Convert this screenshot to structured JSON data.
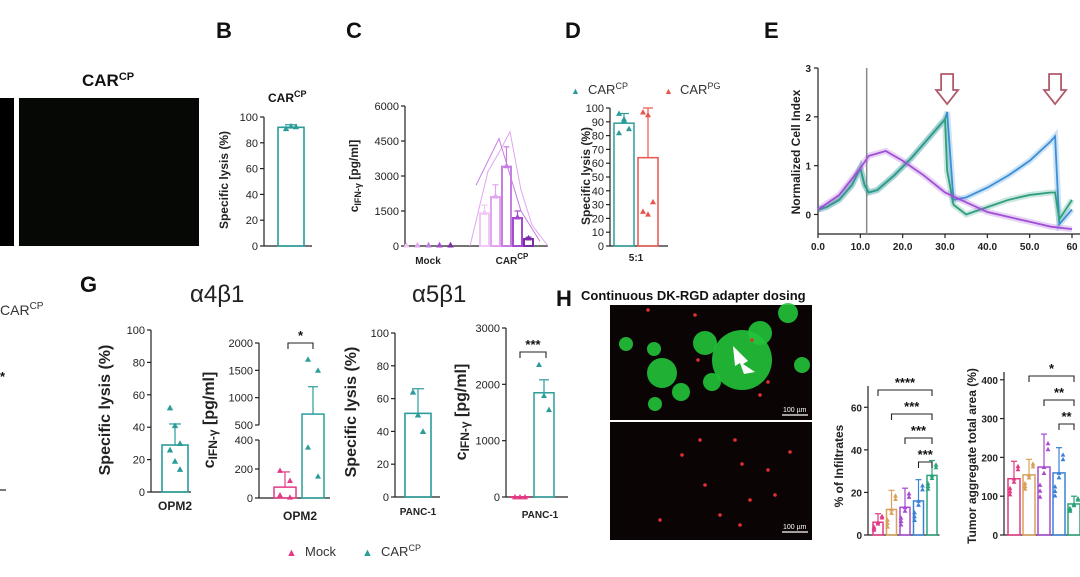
{
  "colors": {
    "teal": "#2a9d9a",
    "pink": "#e33a86",
    "purple": "#a64ad0",
    "lilac": "#e2a6ef",
    "blue": "#3b82d6",
    "orange": "#d9a15a",
    "green": "#2ba37a",
    "mauve": "#b05a6a"
  },
  "panels": {
    "F": {
      "title_main": "CAR",
      "title_sup": "CP"
    },
    "B": {
      "label": "B",
      "title_main": "CAR",
      "title_sup": "CP"
    },
    "C": {
      "label": "C"
    },
    "D": {
      "label": "D",
      "legend": [
        {
          "main": "CAR",
          "sup": "CP"
        },
        {
          "main": "CAR",
          "sup": "PG"
        }
      ]
    },
    "E": {
      "label": "E"
    },
    "G": {
      "label": "G",
      "title1": "α4β1",
      "title2": "α5β1",
      "legend": [
        "Mock",
        {
          "main": "CAR",
          "sup": "CP"
        }
      ],
      "left_frag": "CAR",
      "left_frag_sup": "CP",
      "left_star": "*"
    },
    "H": {
      "label": "H",
      "title": "Continuous DK-RGD adapter dosing",
      "scale1": "100 µm",
      "scale2": "100 µm"
    }
  },
  "chart_data": [
    {
      "id": "B",
      "type": "bar",
      "ylabel": "Specific lysis (%)",
      "ylim": [
        0,
        100
      ],
      "yticks": [
        0,
        20,
        40,
        60,
        80,
        100
      ],
      "categories": [
        ""
      ],
      "values": [
        92
      ],
      "error": [
        2
      ],
      "points": [
        91,
        93,
        92.5
      ]
    },
    {
      "id": "C",
      "type": "bar",
      "ylabel_main": "c",
      "ylabel_sub": "IFN-γ",
      "ylabel_rest": " [pg/ml]",
      "ylim": [
        0,
        6000
      ],
      "yticks": [
        0,
        1500,
        3000,
        4500,
        6000
      ],
      "categories": [
        "Mock",
        {
          "main": "CAR",
          "sup": "CP"
        }
      ],
      "series": [
        {
          "name": "1",
          "values": [
            0,
            1400
          ]
        },
        {
          "name": "2",
          "values": [
            0,
            2100
          ]
        },
        {
          "name": "3",
          "values": [
            0,
            3400
          ]
        },
        {
          "name": "4",
          "values": [
            0,
            1200
          ]
        },
        {
          "name": "5",
          "values": [
            0,
            300
          ]
        }
      ]
    },
    {
      "id": "D",
      "type": "bar",
      "ylabel": "Specific lysis (%)",
      "ylim": [
        0,
        100
      ],
      "yticks": [
        0,
        10,
        20,
        30,
        40,
        50,
        60,
        70,
        80,
        90,
        100
      ],
      "categories": [
        "5:1"
      ],
      "series": [
        {
          "name": "CAR^CP",
          "values": [
            89
          ],
          "error": [
            7
          ],
          "points": [
            96,
            92,
            85,
            82,
            91
          ]
        },
        {
          "name": "CAR^PG",
          "values": [
            64
          ],
          "error": [
            36
          ],
          "points": [
            97,
            95,
            32,
            25,
            23
          ]
        }
      ]
    },
    {
      "id": "E",
      "type": "line",
      "ylabel": "Normalized Cell Index",
      "xlim": [
        0,
        60
      ],
      "ylim": [
        -0.4,
        3
      ],
      "xticks": [
        "0.0",
        "10.0",
        "20.0",
        "30.0",
        "40.0",
        "50.0",
        "60"
      ],
      "yticks": [
        0,
        1,
        2,
        3
      ],
      "series": [
        {
          "name": "blue",
          "x": [
            0,
            2,
            5,
            8,
            10,
            11,
            12,
            14,
            18,
            22,
            26,
            30,
            30.5,
            32,
            35,
            40,
            45,
            50,
            55,
            56,
            57,
            60
          ],
          "y": [
            0.1,
            0.15,
            0.3,
            0.6,
            0.95,
            0.6,
            0.45,
            0.5,
            0.8,
            1.15,
            1.55,
            1.95,
            2.1,
            0.3,
            0.35,
            0.55,
            0.8,
            1.1,
            1.5,
            1.6,
            -0.2,
            0.1
          ]
        },
        {
          "name": "green",
          "x": [
            0,
            2,
            5,
            8,
            10,
            11,
            12,
            14,
            18,
            22,
            26,
            30,
            30.5,
            32,
            35,
            40,
            45,
            50,
            55,
            56,
            57,
            60
          ],
          "y": [
            0.1,
            0.15,
            0.3,
            0.6,
            0.95,
            0.6,
            0.45,
            0.5,
            0.8,
            1.15,
            1.55,
            1.95,
            0.9,
            0.2,
            0.0,
            0.15,
            0.3,
            0.4,
            0.45,
            0.45,
            -0.1,
            0.3
          ]
        },
        {
          "name": "purple",
          "x": [
            0,
            5,
            10,
            12,
            16,
            20,
            25,
            30,
            35,
            40,
            45,
            50,
            55,
            60
          ],
          "y": [
            0.1,
            0.4,
            0.95,
            1.2,
            1.3,
            1.1,
            0.8,
            0.45,
            0.25,
            0.05,
            -0.05,
            -0.15,
            -0.25,
            -0.3
          ]
        }
      ],
      "markers_x": [
        30.5,
        56
      ]
    },
    {
      "id": "G1",
      "type": "bar",
      "ylabel": "Specific lysis (%)",
      "ylim": [
        0,
        100
      ],
      "yticks": [
        0,
        20,
        40,
        60,
        80,
        100
      ],
      "categories": [
        "OPM2"
      ],
      "values": [
        29
      ],
      "error": [
        13
      ],
      "points": [
        52,
        41,
        30,
        26,
        19,
        14
      ]
    },
    {
      "id": "G2",
      "type": "bar",
      "ylabel_main": "c",
      "ylabel_sub": "IFN-γ",
      "ylabel_rest": " [pg/ml]",
      "broken": true,
      "yticks_low": [
        0,
        200,
        400
      ],
      "yticks_high": [
        500,
        1000,
        1500,
        2000
      ],
      "categories": [
        "OPM2"
      ],
      "series": [
        {
          "name": "Mock",
          "values": [
            75
          ],
          "error": [
            105
          ],
          "points": [
            190,
            120,
            20,
            5
          ]
        },
        {
          "name": "CAR^CP",
          "values": [
            700
          ],
          "error": [
            500
          ],
          "points": [
            1700,
            1500,
            350,
            150
          ]
        }
      ],
      "sig": "*"
    },
    {
      "id": "G3",
      "type": "bar",
      "ylabel": "Specific lysis (%)",
      "ylim": [
        0,
        100
      ],
      "yticks": [
        0,
        20,
        40,
        60,
        80,
        100
      ],
      "categories": [
        "PANC-1"
      ],
      "values": [
        51
      ],
      "error": [
        15
      ],
      "points": [
        64,
        50,
        40
      ]
    },
    {
      "id": "G4",
      "type": "bar",
      "ylabel_main": "c",
      "ylabel_sub": "IFN-γ",
      "ylabel_rest": " [pg/ml]",
      "ylim": [
        0,
        3000
      ],
      "yticks": [
        0,
        1000,
        2000,
        3000
      ],
      "categories": [
        "PANC-1"
      ],
      "series": [
        {
          "name": "Mock",
          "values": [
            0
          ],
          "error": [
            0
          ],
          "points": [
            0,
            0,
            0
          ]
        },
        {
          "name": "CAR^CP",
          "values": [
            1850
          ],
          "error": [
            230
          ],
          "points": [
            2350,
            1800,
            1550
          ]
        }
      ],
      "sig": "***"
    },
    {
      "id": "H1",
      "type": "bar",
      "ylabel": "% of Infiltrates",
      "ylim": [
        0,
        70
      ],
      "yticks": [
        0,
        20,
        40,
        60
      ],
      "values": [
        6,
        12,
        13,
        16,
        28
      ],
      "error": [
        4,
        9,
        9,
        10,
        7
      ],
      "sig": [
        "****",
        "***",
        "***",
        "***"
      ]
    },
    {
      "id": "H2",
      "type": "bar",
      "ylabel": "Tumor aggregate total area (%)",
      "ylim": [
        0,
        420
      ],
      "yticks": [
        0,
        100,
        200,
        300,
        400
      ],
      "values": [
        145,
        155,
        175,
        160,
        80
      ],
      "error": [
        45,
        40,
        85,
        65,
        20
      ],
      "sig": [
        "*",
        "**",
        "**"
      ]
    }
  ]
}
